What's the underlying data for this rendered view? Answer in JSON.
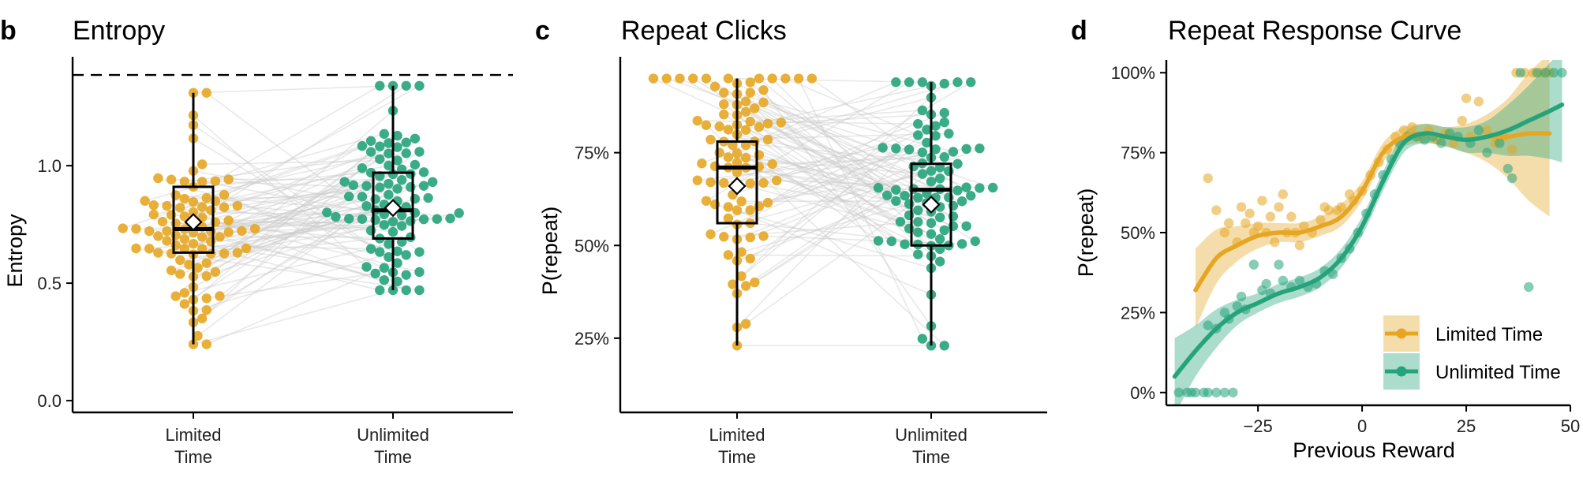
{
  "colors": {
    "limited": "#E6A623",
    "unlimited": "#25A37A",
    "pair_line": "#cccccc",
    "axis": "#000000"
  },
  "chart_data": [
    {
      "type": "box",
      "panel_letter": "b",
      "title": "Entropy",
      "ylabel": "Entropy",
      "xlabel": "",
      "ylim": [
        -0.05,
        1.45
      ],
      "y_ticks": [
        0.0,
        0.5,
        1.0
      ],
      "y_tick_labels": [
        "0.0",
        "0.5",
        "1.0"
      ],
      "reference_line": 1.386,
      "categories": [
        [
          "Limited",
          "Time"
        ],
        [
          "Unlimited",
          "Time"
        ]
      ],
      "groups": [
        {
          "name": "Limited Time",
          "min": 0.24,
          "q1": 0.63,
          "median": 0.73,
          "q3": 0.91,
          "max": 1.31,
          "mean": 0.76
        },
        {
          "name": "Unlimited Time",
          "min": 0.47,
          "q1": 0.69,
          "median": 0.81,
          "q3": 0.97,
          "max": 1.34,
          "mean": 0.82
        }
      ],
      "seed": 11
    },
    {
      "type": "box",
      "panel_letter": "c",
      "title": "Repeat Clicks",
      "ylabel": "P(repeat)",
      "xlabel": "",
      "ylim": [
        0.05,
        1.0
      ],
      "y_ticks": [
        0.25,
        0.5,
        0.75
      ],
      "y_tick_labels": [
        "25%",
        "50%",
        "75%"
      ],
      "categories": [
        [
          "Limited",
          "Time"
        ],
        [
          "Unlimited",
          "Time"
        ]
      ],
      "groups": [
        {
          "name": "Limited Time",
          "min": 0.23,
          "q1": 0.56,
          "median": 0.71,
          "q3": 0.78,
          "max": 0.95,
          "mean": 0.66
        },
        {
          "name": "Unlimited Time",
          "min": 0.23,
          "q1": 0.5,
          "median": 0.65,
          "q3": 0.72,
          "max": 0.94,
          "mean": 0.61
        }
      ],
      "seed": 29
    },
    {
      "type": "line",
      "panel_letter": "d",
      "title": "Repeat Response Curve",
      "xlabel": "Previous Reward",
      "ylabel": "P(repeat)",
      "xlim": [
        -47,
        50
      ],
      "ylim": [
        -0.04,
        1.04
      ],
      "x_ticks": [
        -25,
        0,
        25,
        50
      ],
      "x_tick_labels": [
        "−25",
        "0",
        "25",
        "50"
      ],
      "y_ticks": [
        0,
        0.25,
        0.5,
        0.75,
        1.0
      ],
      "y_tick_labels": [
        "0%",
        "25%",
        "50%",
        "75%",
        "100%"
      ],
      "legend_position": "bottom-right",
      "series": [
        {
          "name": "Limited Time",
          "x": [
            -40,
            -35,
            -30,
            -25,
            -20,
            -15,
            -10,
            -5,
            0,
            5,
            10,
            15,
            20,
            25,
            30,
            35,
            40,
            45
          ],
          "y": [
            0.32,
            0.42,
            0.46,
            0.49,
            0.5,
            0.5,
            0.52,
            0.55,
            0.63,
            0.75,
            0.8,
            0.81,
            0.8,
            0.79,
            0.8,
            0.8,
            0.81,
            0.81
          ],
          "ci_low": [
            0.2,
            0.34,
            0.41,
            0.45,
            0.47,
            0.47,
            0.49,
            0.52,
            0.6,
            0.72,
            0.77,
            0.78,
            0.77,
            0.75,
            0.72,
            0.67,
            0.6,
            0.55
          ],
          "ci_high": [
            0.45,
            0.51,
            0.52,
            0.53,
            0.53,
            0.53,
            0.55,
            0.59,
            0.66,
            0.78,
            0.83,
            0.84,
            0.83,
            0.84,
            0.87,
            0.92,
            1.0,
            1.06
          ]
        },
        {
          "name": "Unlimited Time",
          "x": [
            -45,
            -40,
            -35,
            -30,
            -25,
            -20,
            -15,
            -10,
            -5,
            0,
            5,
            10,
            15,
            20,
            25,
            30,
            35,
            40,
            45,
            48
          ],
          "y": [
            0.05,
            0.13,
            0.2,
            0.25,
            0.28,
            0.31,
            0.33,
            0.36,
            0.42,
            0.52,
            0.66,
            0.78,
            0.81,
            0.8,
            0.79,
            0.8,
            0.82,
            0.85,
            0.88,
            0.9
          ],
          "ci_low": [
            -0.07,
            0.05,
            0.14,
            0.21,
            0.25,
            0.28,
            0.3,
            0.33,
            0.39,
            0.49,
            0.63,
            0.75,
            0.78,
            0.77,
            0.75,
            0.75,
            0.74,
            0.74,
            0.73,
            0.72
          ],
          "ci_high": [
            0.17,
            0.21,
            0.26,
            0.29,
            0.31,
            0.34,
            0.36,
            0.39,
            0.45,
            0.55,
            0.69,
            0.81,
            0.84,
            0.83,
            0.83,
            0.85,
            0.9,
            0.96,
            1.03,
            1.07
          ]
        }
      ],
      "scatter": [
        {
          "name": "Limited Time",
          "points": [
            [
              -37,
              0.67
            ],
            [
              -35,
              0.57
            ],
            [
              -33,
              0.5
            ],
            [
              -32,
              0.53
            ],
            [
              -30,
              0.47
            ],
            [
              -29,
              0.58
            ],
            [
              -28,
              0.53
            ],
            [
              -27,
              0.56
            ],
            [
              -26,
              0.5
            ],
            [
              -25,
              0.52
            ],
            [
              -24,
              0.6
            ],
            [
              -23,
              0.5
            ],
            [
              -22,
              0.55
            ],
            [
              -21,
              0.47
            ],
            [
              -20,
              0.58
            ],
            [
              -19,
              0.62
            ],
            [
              -18,
              0.5
            ],
            [
              -17,
              0.55
            ],
            [
              -16,
              0.5
            ],
            [
              -15,
              0.46
            ],
            [
              -14,
              0.52
            ],
            [
              -12,
              0.5
            ],
            [
              -10,
              0.54
            ],
            [
              -9,
              0.58
            ],
            [
              -8,
              0.57
            ],
            [
              -6,
              0.57
            ],
            [
              -5,
              0.58
            ],
            [
              -3,
              0.62
            ],
            [
              -2,
              0.6
            ],
            [
              0,
              0.63
            ],
            [
              2,
              0.68
            ],
            [
              4,
              0.72
            ],
            [
              6,
              0.76
            ],
            [
              8,
              0.8
            ],
            [
              10,
              0.82
            ],
            [
              12,
              0.83
            ],
            [
              14,
              0.8
            ],
            [
              16,
              0.82
            ],
            [
              18,
              0.79
            ],
            [
              20,
              0.81
            ],
            [
              22,
              0.78
            ],
            [
              24,
              0.85
            ],
            [
              25,
              0.92
            ],
            [
              26,
              0.8
            ],
            [
              28,
              0.91
            ],
            [
              30,
              0.82
            ],
            [
              32,
              0.78
            ],
            [
              34,
              0.8
            ],
            [
              36,
              0.76
            ],
            [
              37,
              1.0
            ],
            [
              39,
              1.0
            ],
            [
              41,
              1.0
            ],
            [
              43,
              1.0
            ],
            [
              45,
              1.0
            ]
          ]
        },
        {
          "name": "Unlimited Time",
          "points": [
            [
              -44,
              0.0
            ],
            [
              -42,
              0.0
            ],
            [
              -41,
              0.0
            ],
            [
              -40,
              0.0
            ],
            [
              -38,
              0.0
            ],
            [
              -37,
              0.0
            ],
            [
              -35,
              0.0
            ],
            [
              -33,
              0.0
            ],
            [
              -31,
              0.0
            ],
            [
              -37,
              0.21
            ],
            [
              -35,
              0.2
            ],
            [
              -33,
              0.25
            ],
            [
              -32,
              0.23
            ],
            [
              -30,
              0.27
            ],
            [
              -29,
              0.3
            ],
            [
              -28,
              0.26
            ],
            [
              -26,
              0.4
            ],
            [
              -24,
              0.32
            ],
            [
              -23,
              0.34
            ],
            [
              -22,
              0.31
            ],
            [
              -20,
              0.4
            ],
            [
              -19,
              0.35
            ],
            [
              -17,
              0.33
            ],
            [
              -15,
              0.35
            ],
            [
              -13,
              0.33
            ],
            [
              -11,
              0.34
            ],
            [
              -9,
              0.38
            ],
            [
              -7,
              0.37
            ],
            [
              -5,
              0.42
            ],
            [
              -3,
              0.45
            ],
            [
              -1,
              0.5
            ],
            [
              1,
              0.56
            ],
            [
              3,
              0.62
            ],
            [
              5,
              0.68
            ],
            [
              7,
              0.73
            ],
            [
              9,
              0.78
            ],
            [
              11,
              0.8
            ],
            [
              13,
              0.8
            ],
            [
              15,
              0.79
            ],
            [
              17,
              0.8
            ],
            [
              19,
              0.78
            ],
            [
              21,
              0.81
            ],
            [
              23,
              0.8
            ],
            [
              26,
              0.78
            ],
            [
              28,
              0.82
            ],
            [
              30,
              0.75
            ],
            [
              33,
              0.78
            ],
            [
              35,
              0.7
            ],
            [
              36,
              0.67
            ],
            [
              40,
              0.33
            ],
            [
              38,
              1.0
            ],
            [
              42,
              1.0
            ],
            [
              44,
              1.0
            ],
            [
              46,
              1.0
            ],
            [
              48,
              1.0
            ]
          ]
        }
      ]
    }
  ]
}
